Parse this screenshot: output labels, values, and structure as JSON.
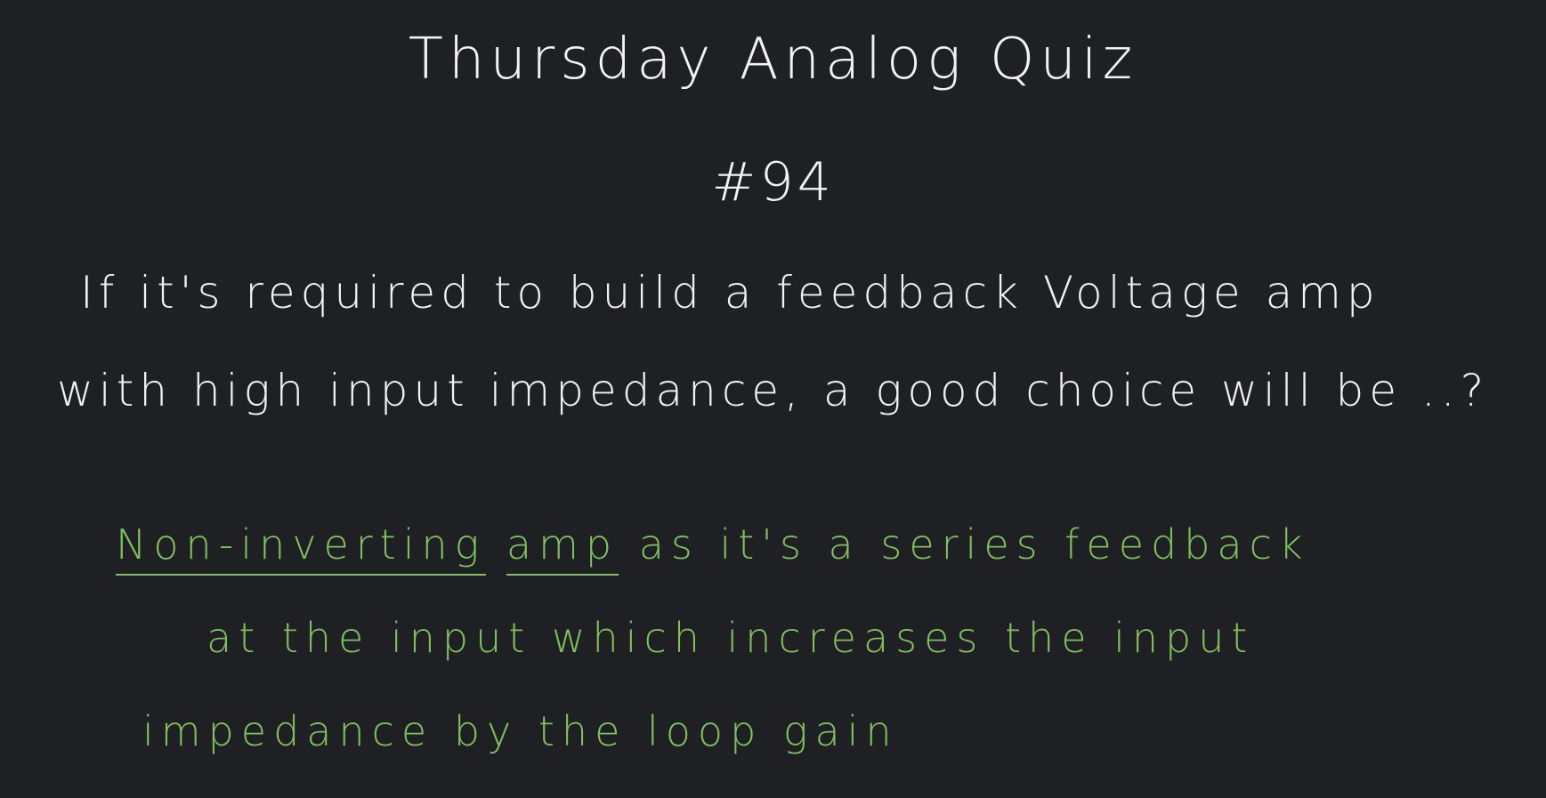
{
  "title": "Thursday Analog Quiz",
  "number": "#94",
  "question": {
    "line1": "If it's required to build a feedback Voltage amp",
    "line2": "with high input impedance, a good choice will be ..?"
  },
  "answer": {
    "line1_part1": "Non-inverting",
    "line1_part2": "amp",
    "line1_part3": "as it's a series feedback",
    "line2": "at the input which increases the input",
    "line3": "impedance by the loop gain"
  },
  "colors": {
    "background": "#1f2023",
    "question_ink": "#f2f2f2",
    "answer_ink": "#7fc15e"
  }
}
